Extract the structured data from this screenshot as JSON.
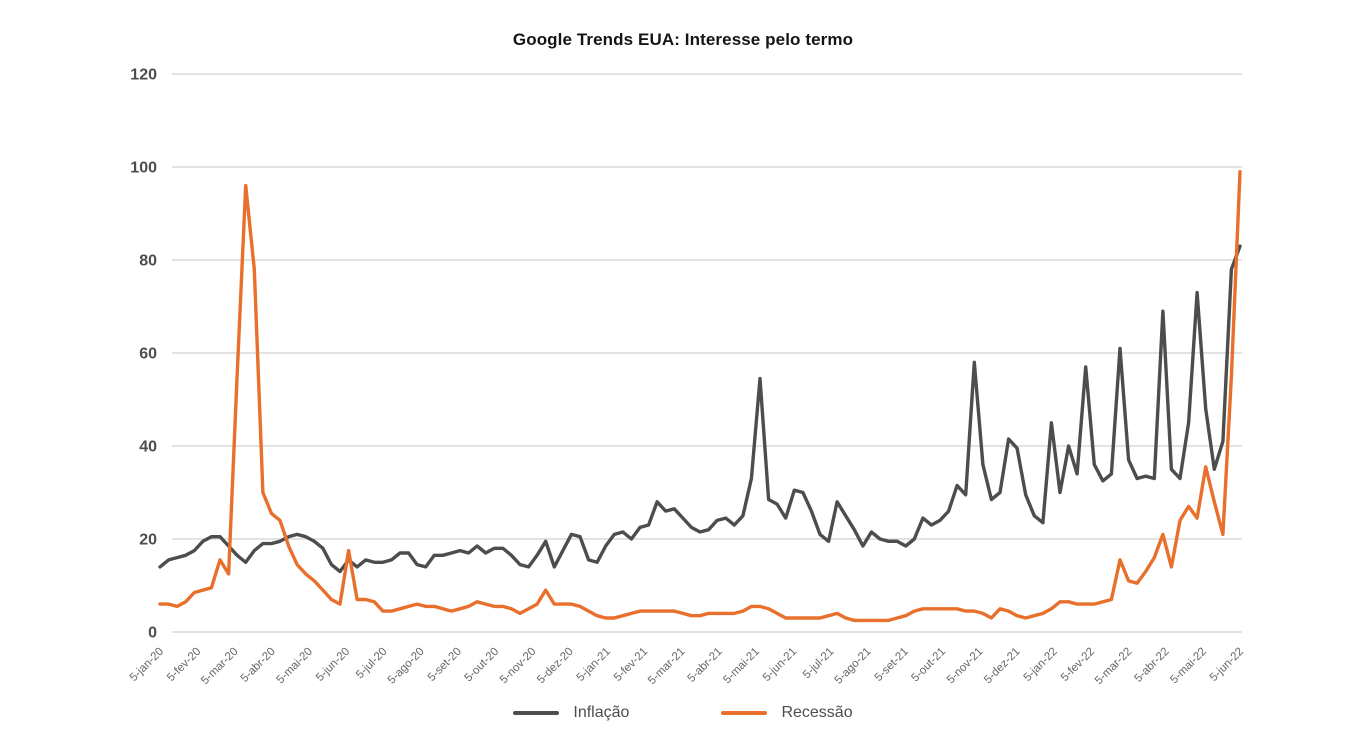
{
  "title": "Google Trends EUA: Interesse pelo termo",
  "colors": {
    "inflacao": "#4D4D4D",
    "recessao": "#E8702C",
    "grid": "#C7C7C7",
    "y_tick_text": "#4D4D4D",
    "x_tick_text": "#666666",
    "title_text": "#151515"
  },
  "legend": {
    "items": [
      {
        "label": "Inflação",
        "color_key": "inflacao"
      },
      {
        "label": "Recessão",
        "color_key": "recessao"
      }
    ]
  },
  "chart_data": {
    "type": "line",
    "title": "Google Trends EUA: Interesse pelo termo",
    "xlabel": "",
    "ylabel": "",
    "ylim": [
      0,
      120
    ],
    "y_ticks": [
      0,
      20,
      40,
      60,
      80,
      100,
      120
    ],
    "grid": "horizontal",
    "legend_position": "bottom-center",
    "x_tick_labels": [
      "5-jan-20",
      "5-fev-20",
      "5-mar-20",
      "5-abr-20",
      "5-mai-20",
      "5-jun-20",
      "5-jul-20",
      "5-ago-20",
      "5-set-20",
      "5-out-20",
      "5-nov-20",
      "5-dez-20",
      "5-jan-21",
      "5-fev-21",
      "5-mar-21",
      "5-abr-21",
      "5-mai-21",
      "5-jun-21",
      "5-jul-21",
      "5-ago-21",
      "5-set-21",
      "5-out-21",
      "5-nov-21",
      "5-dez-21",
      "5-jan-22",
      "5-fev-22",
      "5-mar-22",
      "5-abr-22",
      "5-mai-22",
      "5-jun-22"
    ],
    "x_frequency": "weekly",
    "series": [
      {
        "name": "Inflação",
        "color": "#4D4D4D",
        "values": [
          14,
          15.5,
          16,
          16.5,
          17.5,
          19.5,
          20.5,
          20.5,
          18.5,
          16.5,
          15,
          17.5,
          19,
          19,
          19.5,
          20.5,
          21,
          20.5,
          19.5,
          18,
          14.5,
          13,
          15.5,
          14,
          15.5,
          15,
          15,
          15.5,
          17,
          17,
          14.5,
          14,
          16.5,
          16.5,
          17,
          17.5,
          17,
          18.5,
          17,
          18,
          18,
          16.5,
          14.5,
          14,
          16.5,
          19.5,
          14,
          17.5,
          21,
          20.5,
          15.5,
          15,
          18.5,
          21,
          21.5,
          20,
          22.5,
          23,
          28,
          26,
          26.5,
          24.5,
          22.5,
          21.5,
          22,
          24,
          24.5,
          23,
          25,
          33,
          54.5,
          28.5,
          27.5,
          24.5,
          30.5,
          30,
          26,
          21,
          19.5,
          28,
          25,
          22,
          18.5,
          21.5,
          20,
          19.5,
          19.5,
          18.5,
          20,
          24.5,
          23,
          24,
          26,
          31.5,
          29.5,
          58,
          36,
          28.5,
          30,
          41.5,
          39.5,
          29.5,
          25,
          23.5,
          45,
          30,
          40,
          34,
          57,
          36,
          32.5,
          34,
          61,
          37,
          33,
          33.5,
          33,
          69,
          35,
          33,
          45,
          73,
          48,
          35,
          41,
          78,
          83
        ]
      },
      {
        "name": "Recessão",
        "color": "#E8702C",
        "values": [
          6,
          6,
          5.5,
          6.5,
          8.5,
          9,
          9.5,
          15.5,
          12.5,
          55,
          96,
          78,
          30,
          25.5,
          24,
          18.5,
          14.5,
          12.5,
          11,
          9,
          7,
          6,
          17.5,
          7,
          7,
          6.5,
          4.5,
          4.5,
          5,
          5.5,
          6,
          5.5,
          5.5,
          5,
          4.5,
          5,
          5.5,
          6.5,
          6,
          5.5,
          5.5,
          5,
          4,
          5,
          6,
          9,
          6,
          6,
          6,
          5.5,
          4.5,
          3.5,
          3,
          3,
          3.5,
          4,
          4.5,
          4.5,
          4.5,
          4.5,
          4.5,
          4,
          3.5,
          3.5,
          4,
          4,
          4,
          4,
          4.5,
          5.5,
          5.5,
          5,
          4,
          3,
          3,
          3,
          3,
          3,
          3.5,
          4,
          3,
          2.5,
          2.5,
          2.5,
          2.5,
          2.5,
          3,
          3.5,
          4.5,
          5,
          5,
          5,
          5,
          5,
          4.5,
          4.5,
          4,
          3,
          5,
          4.5,
          3.5,
          3,
          3.5,
          4,
          5,
          6.5,
          6.5,
          6,
          6,
          6,
          6.5,
          7,
          15.5,
          11,
          10.5,
          13,
          16,
          21,
          14,
          24,
          27,
          24.5,
          35.5,
          28,
          21,
          55,
          99
        ]
      }
    ]
  }
}
